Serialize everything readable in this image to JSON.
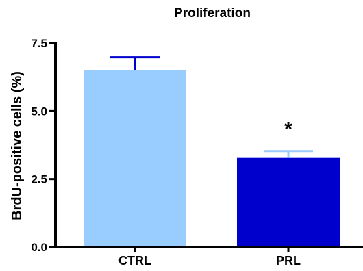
{
  "chart_data": {
    "type": "bar",
    "title": "Proliferation",
    "ylabel": "BrdU-positive cells (%)",
    "xlabel": "",
    "ylim": [
      0,
      7.5
    ],
    "yticks": [
      0.0,
      2.5,
      5.0,
      7.5
    ],
    "ytick_labels": [
      "0.0",
      "2.5",
      "5.0",
      "7.5"
    ],
    "categories": [
      "CTRL",
      "PRL"
    ],
    "values": [
      6.5,
      3.28
    ],
    "errors": [
      0.48,
      0.25
    ],
    "bar_colors": [
      "#99ccff",
      "#0000cc"
    ],
    "error_colors": [
      "#0000cc",
      "#99ccff"
    ],
    "annotations": [
      {
        "category": "PRL",
        "text": "*"
      }
    ],
    "grid": false
  }
}
